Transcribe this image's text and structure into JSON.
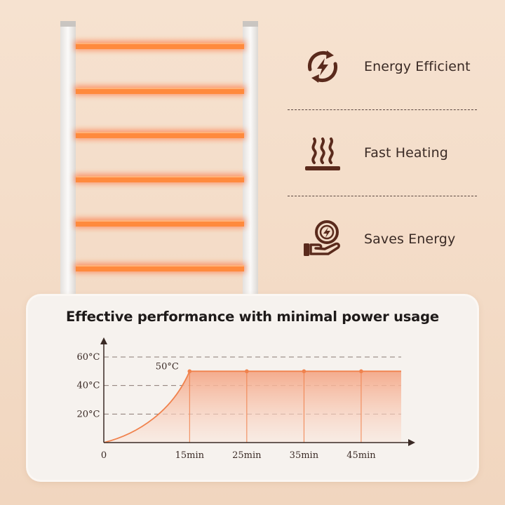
{
  "features": [
    {
      "label": "Energy Efficient",
      "icon": "energy-cycle-icon"
    },
    {
      "label": "Fast Heating",
      "icon": "heat-waves-icon"
    },
    {
      "label": "Saves Energy",
      "icon": "hand-energy-icon"
    }
  ],
  "colors": {
    "icon": "#5a2a1c",
    "bar": "#ff8a3d",
    "bar_glow": "#ff5a1f",
    "line": "#f0824d",
    "fill_top": "#f4a888",
    "fill_bottom": "#fbe5da"
  },
  "chart_data": {
    "type": "area",
    "title": "Effective performance with minimal power usage",
    "xlabel": "",
    "ylabel": "",
    "x_tick_labels": [
      "0",
      "15min",
      "25min",
      "35min",
      "45min"
    ],
    "x_ticks": [
      0,
      15,
      25,
      35,
      45
    ],
    "y_tick_labels": [
      "20°C",
      "40°C",
      "60°C"
    ],
    "y_ticks": [
      20,
      40,
      60
    ],
    "xlim": [
      0,
      52
    ],
    "ylim": [
      0,
      60
    ],
    "grid": "dashed horizontal at y ticks",
    "curve": {
      "x": [
        0,
        5,
        10,
        15
      ],
      "y": [
        0,
        8.3,
        23,
        50
      ]
    },
    "plateau": {
      "x": [
        15,
        52
      ],
      "y": 50
    },
    "markers": [
      {
        "x": 15,
        "y": 50
      },
      {
        "x": 25,
        "y": 50
      },
      {
        "x": 35,
        "y": 50
      },
      {
        "x": 45,
        "y": 50
      }
    ],
    "annotation": {
      "text": "50°C",
      "x": 15,
      "y": 50
    }
  }
}
